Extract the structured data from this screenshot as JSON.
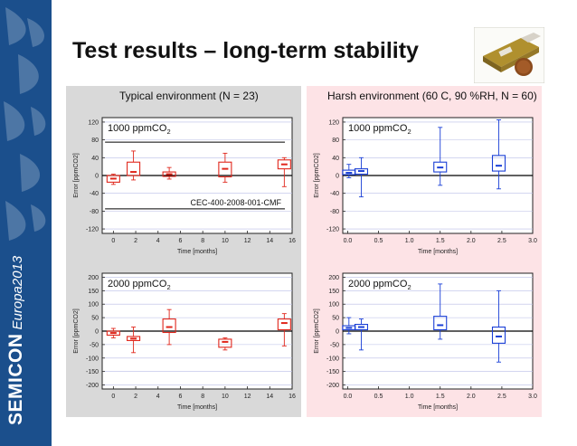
{
  "slide": {
    "title": "Test results – long-term stability",
    "brand_name": "SEMICON",
    "brand_sub": "Europa2013"
  },
  "panels": {
    "left_title": "Typical environment (N = 23)",
    "right_title": "Harsh environment (60  C, 90 %RH, N = 60)"
  },
  "colors": {
    "sidebar": "#1b4f8c",
    "left_panel_bg": "#d9d9d9",
    "right_panel_bg": "#fde3e6",
    "typical_series": "#e0261b",
    "harsh_series": "#1a3fd6"
  },
  "chart_data": [
    {
      "id": "c1",
      "type": "box",
      "environment": "typical",
      "label_main": "1000 ppmCO",
      "label_sub": "2",
      "annotation": "CEC-400-2008-001-CMF",
      "limit_lines": [
        75,
        -75
      ],
      "xlabel": "Time [months]",
      "ylabel": "Error [ppmCO2]",
      "xlim": [
        -1,
        16
      ],
      "ylim": [
        -130,
        130
      ],
      "xticks": [
        0,
        2,
        4,
        6,
        8,
        10,
        12,
        14,
        16
      ],
      "yticks": [
        -120,
        -80,
        -40,
        0,
        40,
        80,
        120
      ],
      "ytick_labels": [
        "-120",
        "-80",
        "-40",
        "0",
        "40",
        "80",
        "120"
      ],
      "xtick_labels": [
        "0",
        "2",
        "4",
        "6",
        "8",
        "10",
        "12",
        "14",
        "16"
      ],
      "boxes": [
        {
          "x": 0,
          "q1": -15,
          "q3": 0,
          "median": -7,
          "min": -20,
          "max": 3
        },
        {
          "x": 1.8,
          "q1": 0,
          "q3": 30,
          "median": 8,
          "min": -10,
          "max": 55
        },
        {
          "x": 5,
          "q1": -2,
          "q3": 8,
          "median": 3,
          "min": -8,
          "max": 18
        },
        {
          "x": 10,
          "q1": -3,
          "q3": 30,
          "median": 15,
          "min": -15,
          "max": 50
        },
        {
          "x": 15.3,
          "q1": 15,
          "q3": 35,
          "median": 25,
          "min": -25,
          "max": 40
        }
      ]
    },
    {
      "id": "c2",
      "type": "box",
      "environment": "harsh",
      "label_main": "1000 ppmCO",
      "label_sub": "2",
      "xlabel": "Time [months]",
      "ylabel": "Error [ppmCO2]",
      "xlim": [
        -0.08,
        3.0
      ],
      "ylim": [
        -130,
        130
      ],
      "xticks": [
        0,
        0.5,
        1,
        1.5,
        2,
        2.5,
        3
      ],
      "xtick_labels": [
        "0.0",
        "0.5",
        "1.0",
        "1.5",
        "2.0",
        "2.5",
        "3.0"
      ],
      "yticks": [
        -120,
        -80,
        -40,
        0,
        40,
        80,
        120
      ],
      "ytick_labels": [
        "-120",
        "-80",
        "-40",
        "0",
        "40",
        "80",
        "120"
      ],
      "boxes": [
        {
          "x": 0.02,
          "q1": 2,
          "q3": 12,
          "median": 6,
          "min": -5,
          "max": 25
        },
        {
          "x": 0.22,
          "q1": 3,
          "q3": 15,
          "median": 10,
          "min": -48,
          "max": 40
        },
        {
          "x": 1.5,
          "q1": 8,
          "q3": 30,
          "median": 18,
          "min": -22,
          "max": 108
        },
        {
          "x": 2.45,
          "q1": 10,
          "q3": 45,
          "median": 22,
          "min": -30,
          "max": 125
        }
      ]
    },
    {
      "id": "c3",
      "type": "box",
      "environment": "typical",
      "label_main": "2000 ppmCO",
      "label_sub": "2",
      "xlabel": "Time [months]",
      "ylabel": "Error [ppmCO2]",
      "xlim": [
        -1,
        16
      ],
      "ylim": [
        -215,
        215
      ],
      "xticks": [
        0,
        2,
        4,
        6,
        8,
        10,
        12,
        14,
        16
      ],
      "xtick_labels": [
        "0",
        "2",
        "4",
        "6",
        "8",
        "10",
        "12",
        "14",
        "16"
      ],
      "yticks": [
        -200,
        -150,
        -100,
        -50,
        0,
        50,
        100,
        150,
        200
      ],
      "ytick_labels": [
        "-200",
        "-150",
        "-100",
        "-50",
        "0",
        "50",
        "100",
        "150",
        "200"
      ],
      "boxes": [
        {
          "x": 0,
          "q1": -15,
          "q3": 0,
          "median": -7,
          "min": -25,
          "max": 10
        },
        {
          "x": 1.8,
          "q1": -35,
          "q3": -20,
          "median": -28,
          "min": -80,
          "max": 15
        },
        {
          "x": 5,
          "q1": -5,
          "q3": 45,
          "median": 15,
          "min": -50,
          "max": 80
        },
        {
          "x": 10,
          "q1": -60,
          "q3": -30,
          "median": -40,
          "min": -70,
          "max": -25
        },
        {
          "x": 15.3,
          "q1": 5,
          "q3": 45,
          "median": 30,
          "min": -55,
          "max": 65
        }
      ]
    },
    {
      "id": "c4",
      "type": "box",
      "environment": "harsh",
      "label_main": "2000 ppmCO",
      "label_sub": "2",
      "xlabel": "Time [months]",
      "ylabel": "Error [ppmCO2]",
      "xlim": [
        -0.08,
        3.0
      ],
      "ylim": [
        -215,
        215
      ],
      "xticks": [
        0,
        0.5,
        1,
        1.5,
        2,
        2.5,
        3
      ],
      "xtick_labels": [
        "0.0",
        "0.5",
        "1.0",
        "1.5",
        "2.0",
        "2.5",
        "3.0"
      ],
      "yticks": [
        -200,
        -150,
        -100,
        -50,
        0,
        50,
        100,
        150,
        200
      ],
      "ytick_labels": [
        "-200",
        "-150",
        "-100",
        "-50",
        "0",
        "50",
        "100",
        "150",
        "200"
      ],
      "boxes": [
        {
          "x": 0.02,
          "q1": 5,
          "q3": 20,
          "median": 12,
          "min": -10,
          "max": 50
        },
        {
          "x": 0.22,
          "q1": 5,
          "q3": 25,
          "median": 15,
          "min": -70,
          "max": 45
        },
        {
          "x": 1.5,
          "q1": 5,
          "q3": 55,
          "median": 22,
          "min": -30,
          "max": 175
        },
        {
          "x": 2.45,
          "q1": -45,
          "q3": 15,
          "median": -20,
          "min": -115,
          "max": 150
        }
      ]
    }
  ]
}
